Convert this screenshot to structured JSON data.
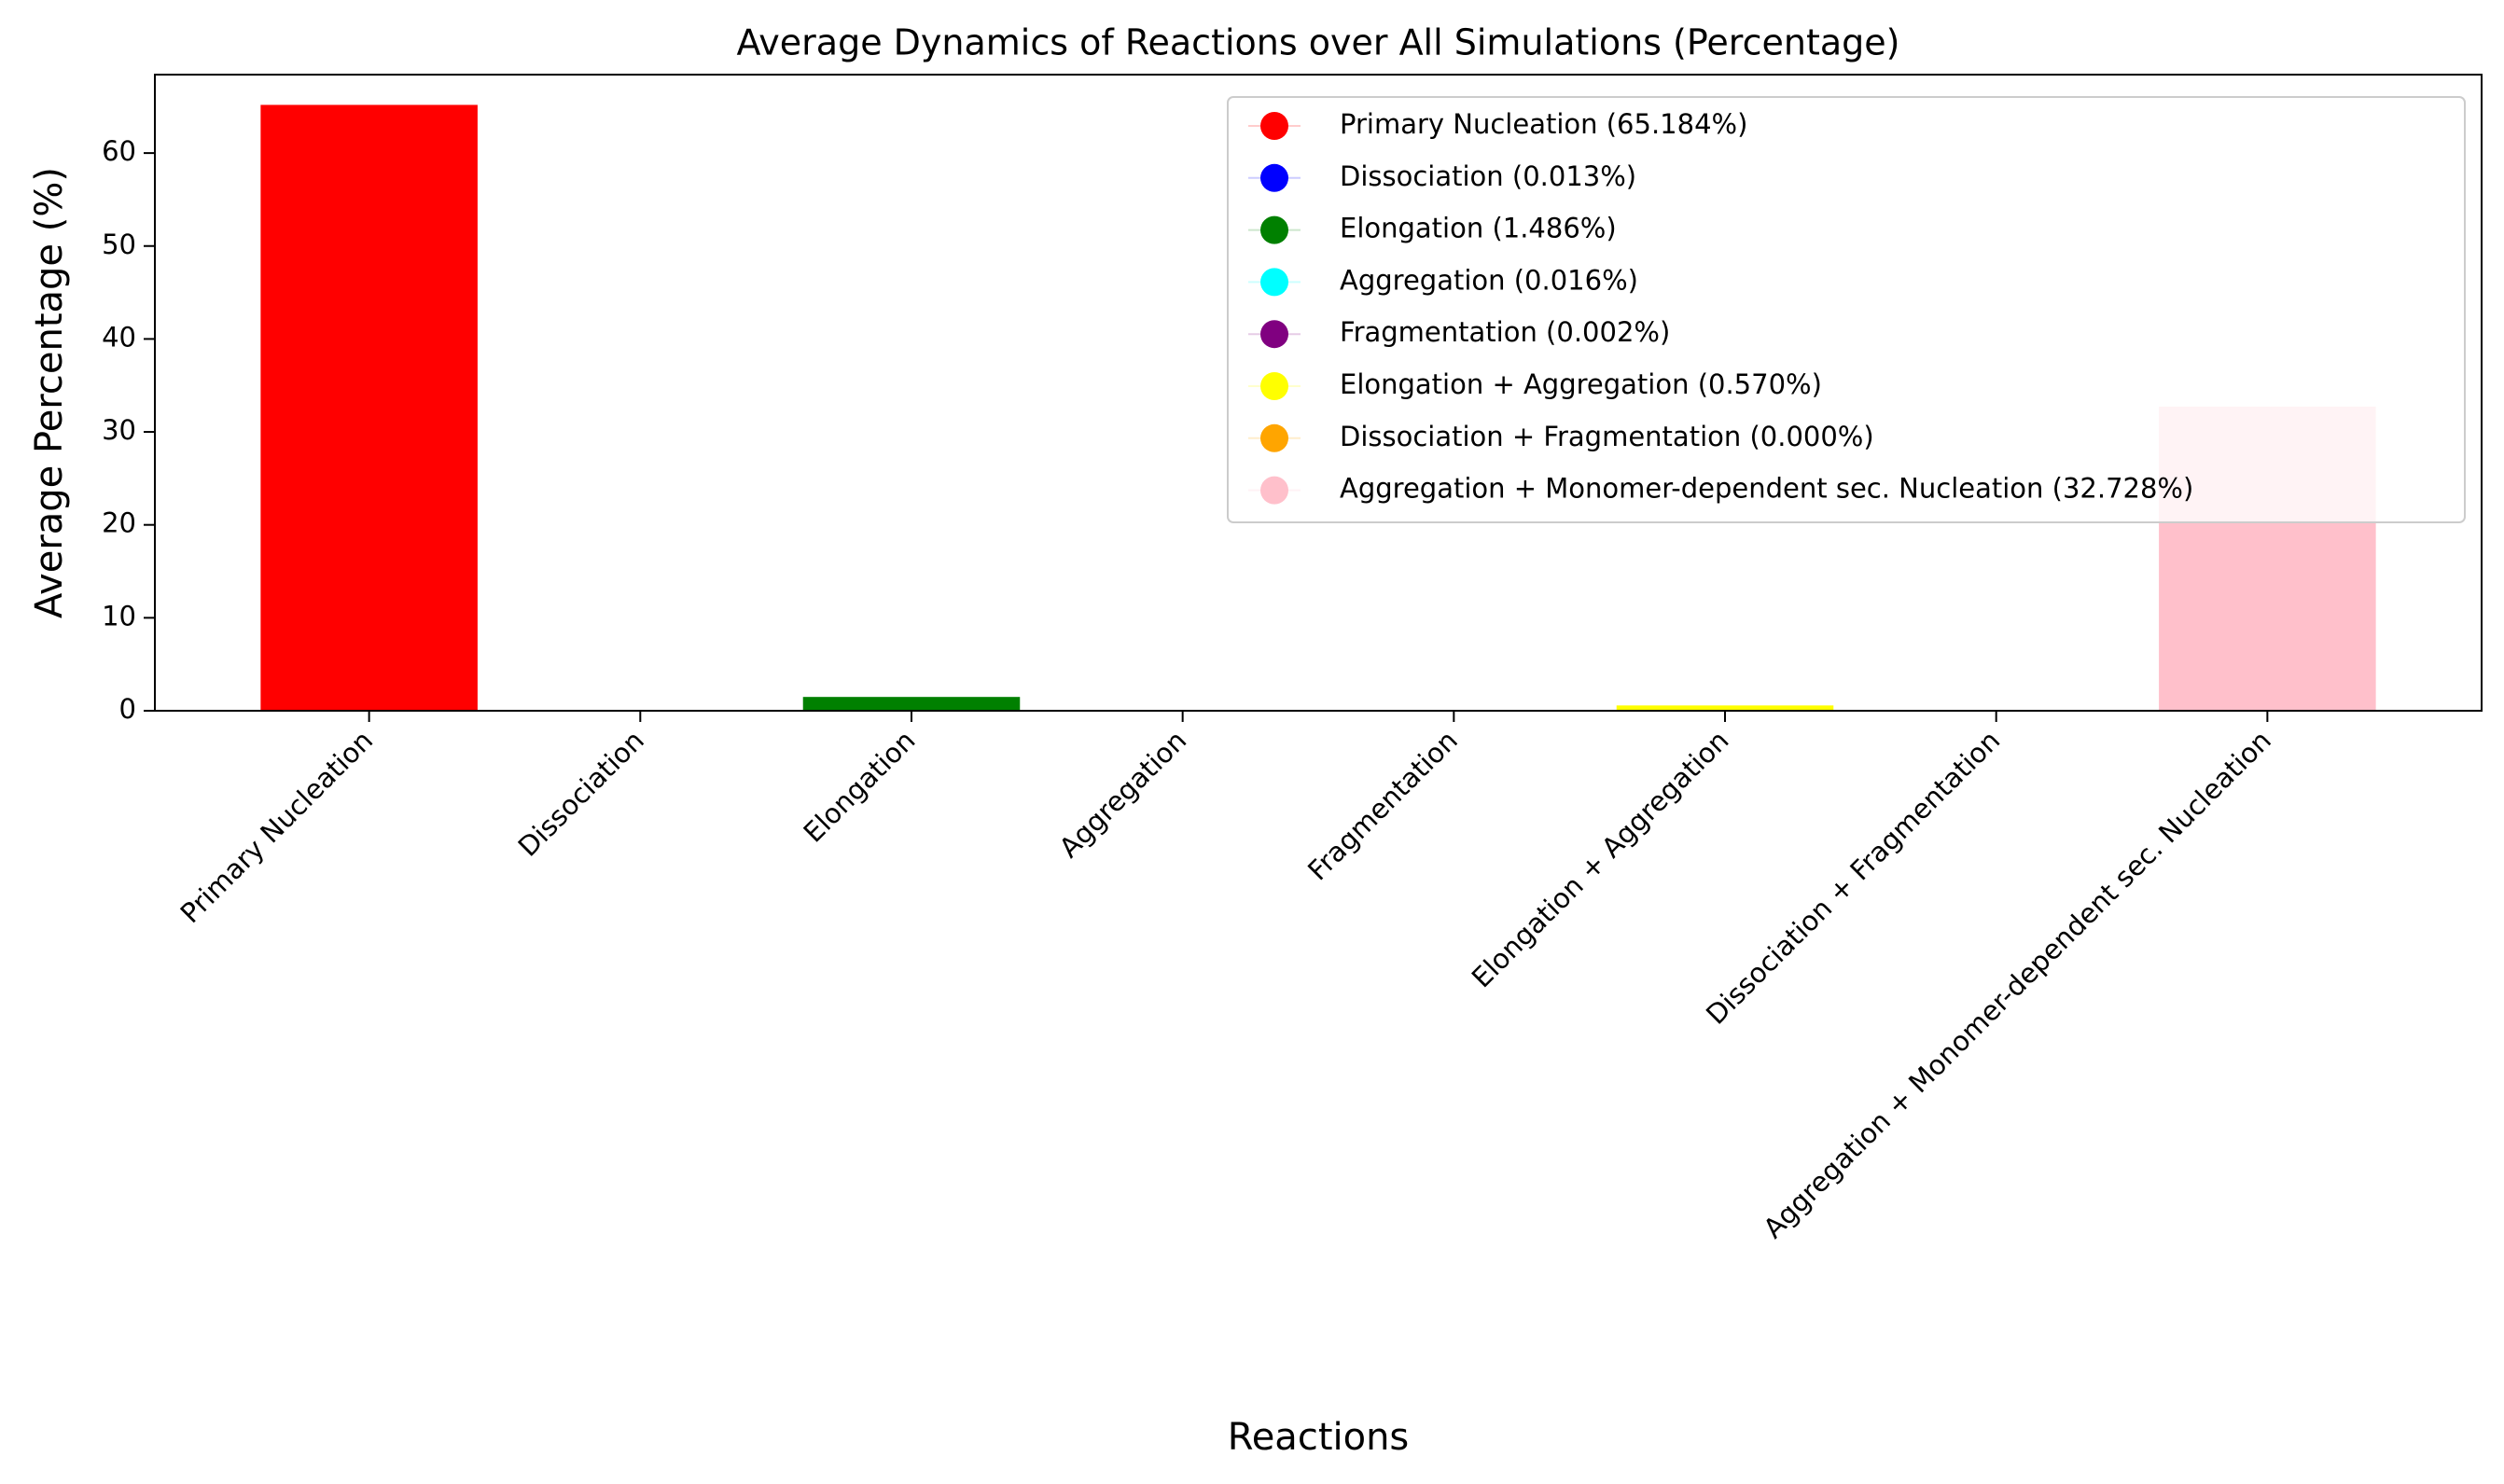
{
  "chart_data": {
    "type": "bar",
    "title": "Average Dynamics of Reactions over All Simulations (Percentage)",
    "x_label": "Reactions",
    "y_label": "Average Percentage (%)",
    "categories": [
      "Primary Nucleation",
      "Dissociation",
      "Elongation",
      "Aggregation",
      "Fragmentation",
      "Elongation + Aggregation",
      "Dissociation + Fragmentation",
      "Aggregation + Monomer-dependent sec. Nucleation"
    ],
    "values": [
      65.184,
      0.013,
      1.486,
      0.016,
      0.002,
      0.57,
      0.0,
      32.728
    ],
    "colors": [
      "#ff0000",
      "#0000ff",
      "#008000",
      "#00ffff",
      "#800080",
      "#ffff00",
      "#ffa500",
      "#ffc0cb"
    ],
    "legend": [
      "Primary Nucleation (65.184%)",
      "Dissociation (0.013%)",
      "Elongation (1.486%)",
      "Aggregation (0.016%)",
      "Fragmentation (0.002%)",
      "Elongation + Aggregation (0.570%)",
      "Dissociation + Fragmentation (0.000%)",
      "Aggregation + Monomer-dependent sec. Nucleation (32.728%)"
    ],
    "legend_position": "upper right",
    "ylim": [
      0,
      68.44
    ],
    "yticks": [
      0,
      10,
      20,
      30,
      40,
      50,
      60
    ],
    "grid": false
  }
}
